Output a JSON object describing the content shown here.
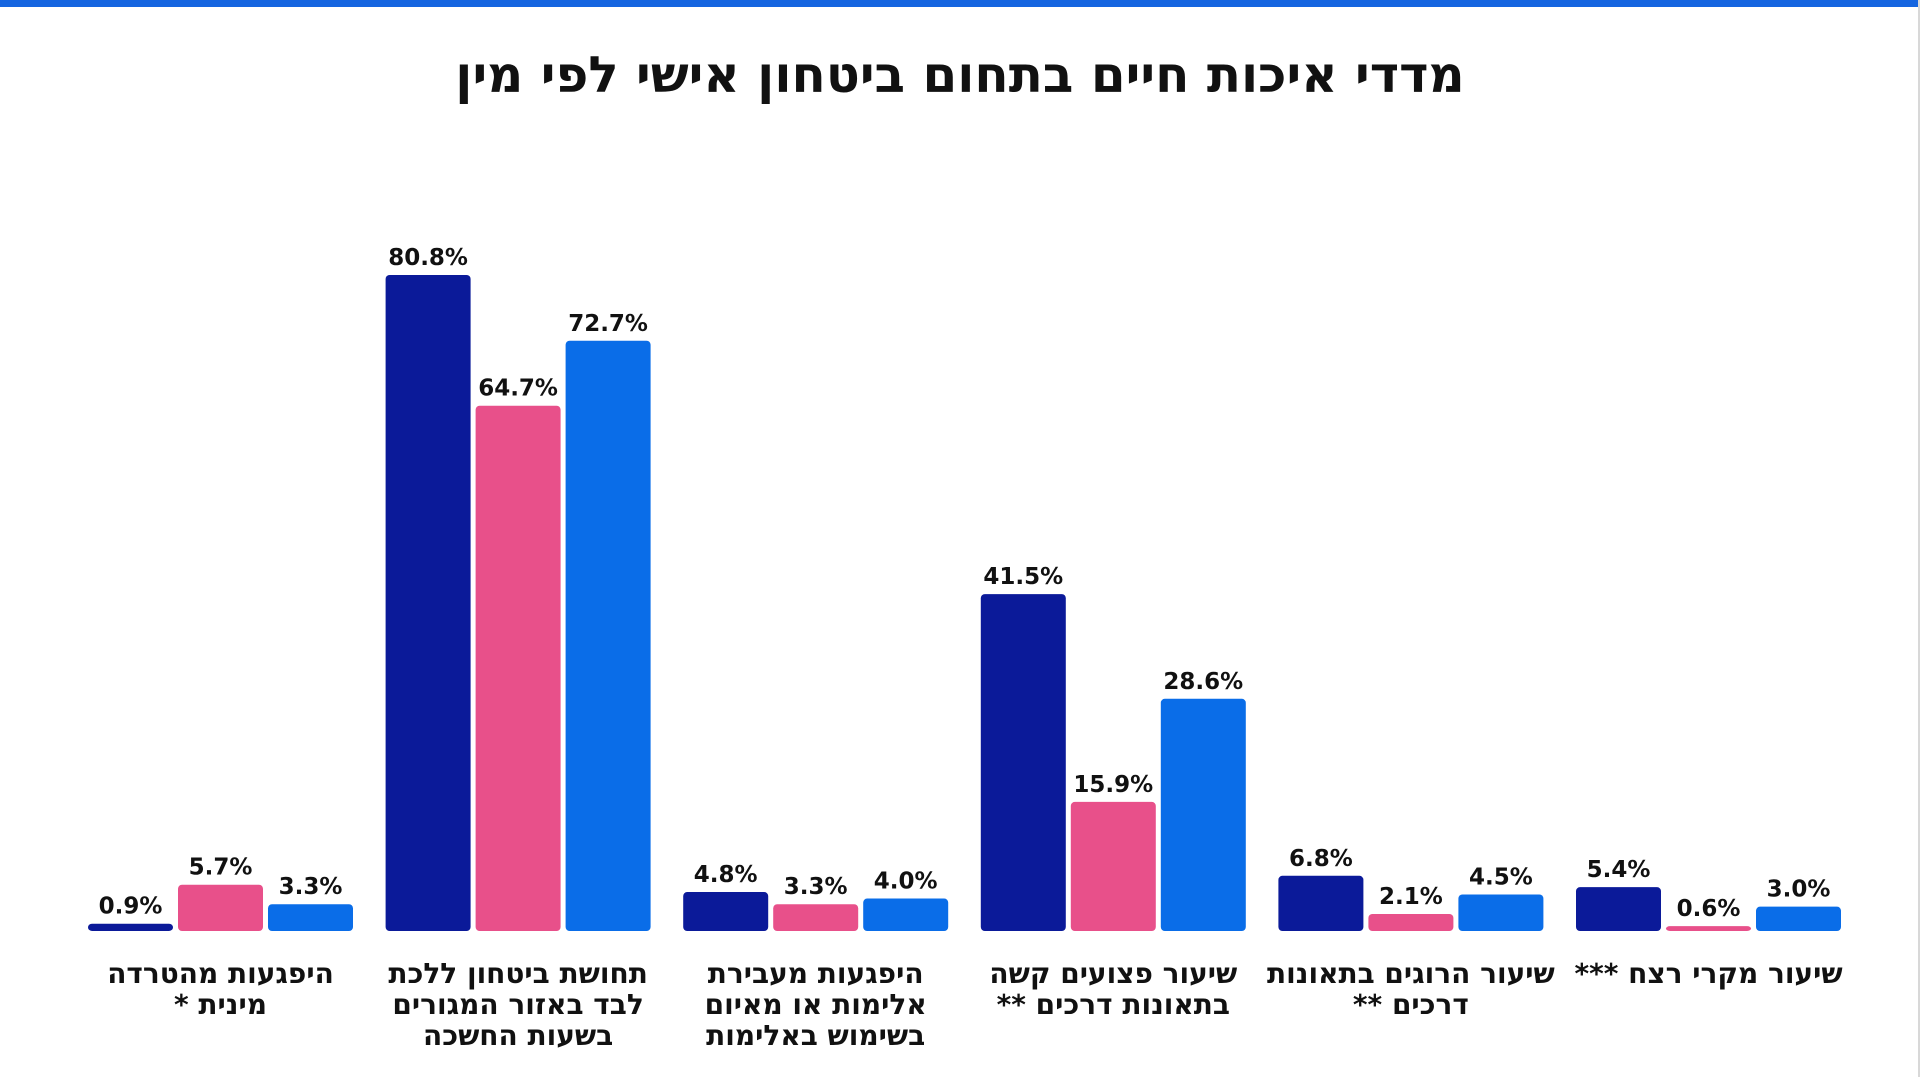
{
  "chart_data": {
    "type": "bar",
    "title": "מדדי איכות חיים בתחום ביטחון אישי לפי מין",
    "categories": [
      "היפגעות מהטרדה מינית *",
      "תחושת ביטחון ללכת לבד באזור המגורים בשעות החשכה",
      "היפגעות מעבירת אלימות או מאיום בשימוש באלימות",
      "שיעור פצועים קשה בתאונות דרכים **",
      "שיעור הרוגים בתאונות דרכים **",
      "שיעור מקרי רצח ***"
    ],
    "series": [
      {
        "color": "#0b1a99",
        "values": [
          0.9,
          80.8,
          4.8,
          41.5,
          6.8,
          5.4
        ],
        "labels": [
          "0.9%",
          "80.8%",
          "4.8%",
          "41.5%",
          "6.8%",
          "5.4%"
        ]
      },
      {
        "color": "#e8508a",
        "values": [
          5.7,
          64.7,
          3.3,
          15.9,
          2.1,
          0.6
        ],
        "labels": [
          "5.7%",
          "64.7%",
          "3.3%",
          "15.9%",
          "2.1%",
          "0.6%"
        ]
      },
      {
        "color": "#0a6de8",
        "values": [
          3.3,
          72.7,
          4.0,
          28.6,
          4.5,
          3.0
        ],
        "labels": [
          "3.3%",
          "72.7%",
          "4.0%",
          "28.6%",
          "4.5%",
          "3.0%"
        ]
      }
    ],
    "xlabel": "",
    "ylabel": "",
    "ylim": [
      0,
      80.8
    ],
    "grid": false,
    "legend": "none"
  }
}
